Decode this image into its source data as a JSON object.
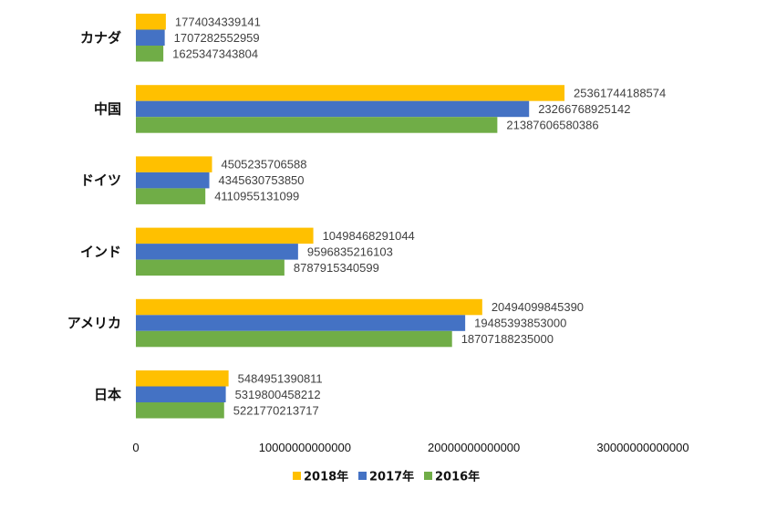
{
  "chart_data": {
    "type": "bar",
    "orientation": "horizontal",
    "categories": [
      "カナダ",
      "中国",
      "ドイツ",
      "インド",
      "アメリカ",
      "日本"
    ],
    "series": [
      {
        "name": "2018年",
        "color": "#FFC000",
        "values": [
          1774034339141,
          25361744188574,
          4505235706588,
          10498468291044,
          20494099845390,
          5484951390811
        ]
      },
      {
        "name": "2017年",
        "color": "#4472C4",
        "values": [
          1707282552959,
          23266768925142,
          4345630753850,
          9596835216103,
          19485393853000,
          5319800458212
        ]
      },
      {
        "name": "2016年",
        "color": "#70AD47",
        "values": [
          1625347343804,
          21387606580386,
          4110955131099,
          8787915340599,
          18707188235000,
          5221770213717
        ]
      }
    ],
    "xlim": [
      0,
      30000000000000
    ],
    "xticks": [
      "0",
      "10000000000000",
      "20000000000000",
      "30000000000000"
    ],
    "grid": false,
    "legend_position": "bottom"
  }
}
